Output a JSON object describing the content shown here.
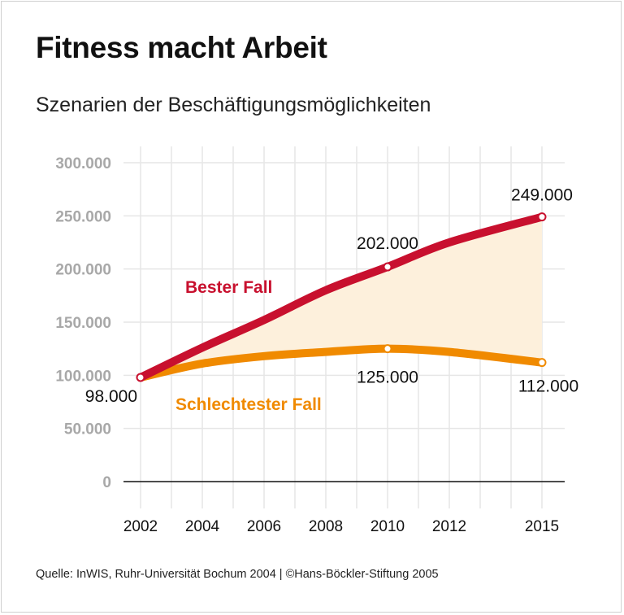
{
  "title": "Fitness macht Arbeit",
  "subtitle": "Szenarien der Beschäftigungsmöglichkeiten",
  "source": "Quelle: InWIS, Ruhr-Universität Bochum 2004 | ©Hans-Böckler-Stiftung 2005",
  "chart_data": {
    "type": "line",
    "title": "Fitness macht Arbeit",
    "subtitle": "Szenarien der Beschäftigungsmöglichkeiten",
    "x": [
      2002,
      2004,
      2006,
      2008,
      2010,
      2012,
      2015
    ],
    "x_tick_labels": [
      "2002",
      "2004",
      "2006",
      "2008",
      "2010",
      "2012",
      "2015"
    ],
    "y_tick_labels": [
      "0",
      "50.000",
      "100.000",
      "150.000",
      "200.000",
      "250.000",
      "300.000"
    ],
    "y_ticks": [
      0,
      50000,
      100000,
      150000,
      200000,
      250000,
      300000
    ],
    "ylim": [
      0,
      300000
    ],
    "xlim": [
      2002,
      2015
    ],
    "grid": true,
    "fill_between_series": true,
    "series": [
      {
        "name": "Bester Fall",
        "color": "#c8102e",
        "x": [
          2002,
          2004,
          2006,
          2008,
          2010,
          2012,
          2015
        ],
        "values": [
          98000,
          126000,
          152000,
          180000,
          202000,
          225000,
          249000
        ]
      },
      {
        "name": "Schlechtester Fall",
        "color": "#f08a00",
        "x": [
          2002,
          2004,
          2006,
          2008,
          2010,
          2012,
          2015
        ],
        "values": [
          98000,
          111000,
          118000,
          122000,
          125000,
          122000,
          112000
        ]
      }
    ],
    "annotations": [
      {
        "x": 2002,
        "y": 98000,
        "text": "98.000"
      },
      {
        "x": 2010,
        "y": 202000,
        "text": "202.000"
      },
      {
        "x": 2015,
        "y": 249000,
        "text": "249.000"
      },
      {
        "x": 2010,
        "y": 125000,
        "text": "125.000"
      },
      {
        "x": 2015,
        "y": 112000,
        "text": "112.000"
      }
    ],
    "fill_color": "#fdf0dc"
  }
}
